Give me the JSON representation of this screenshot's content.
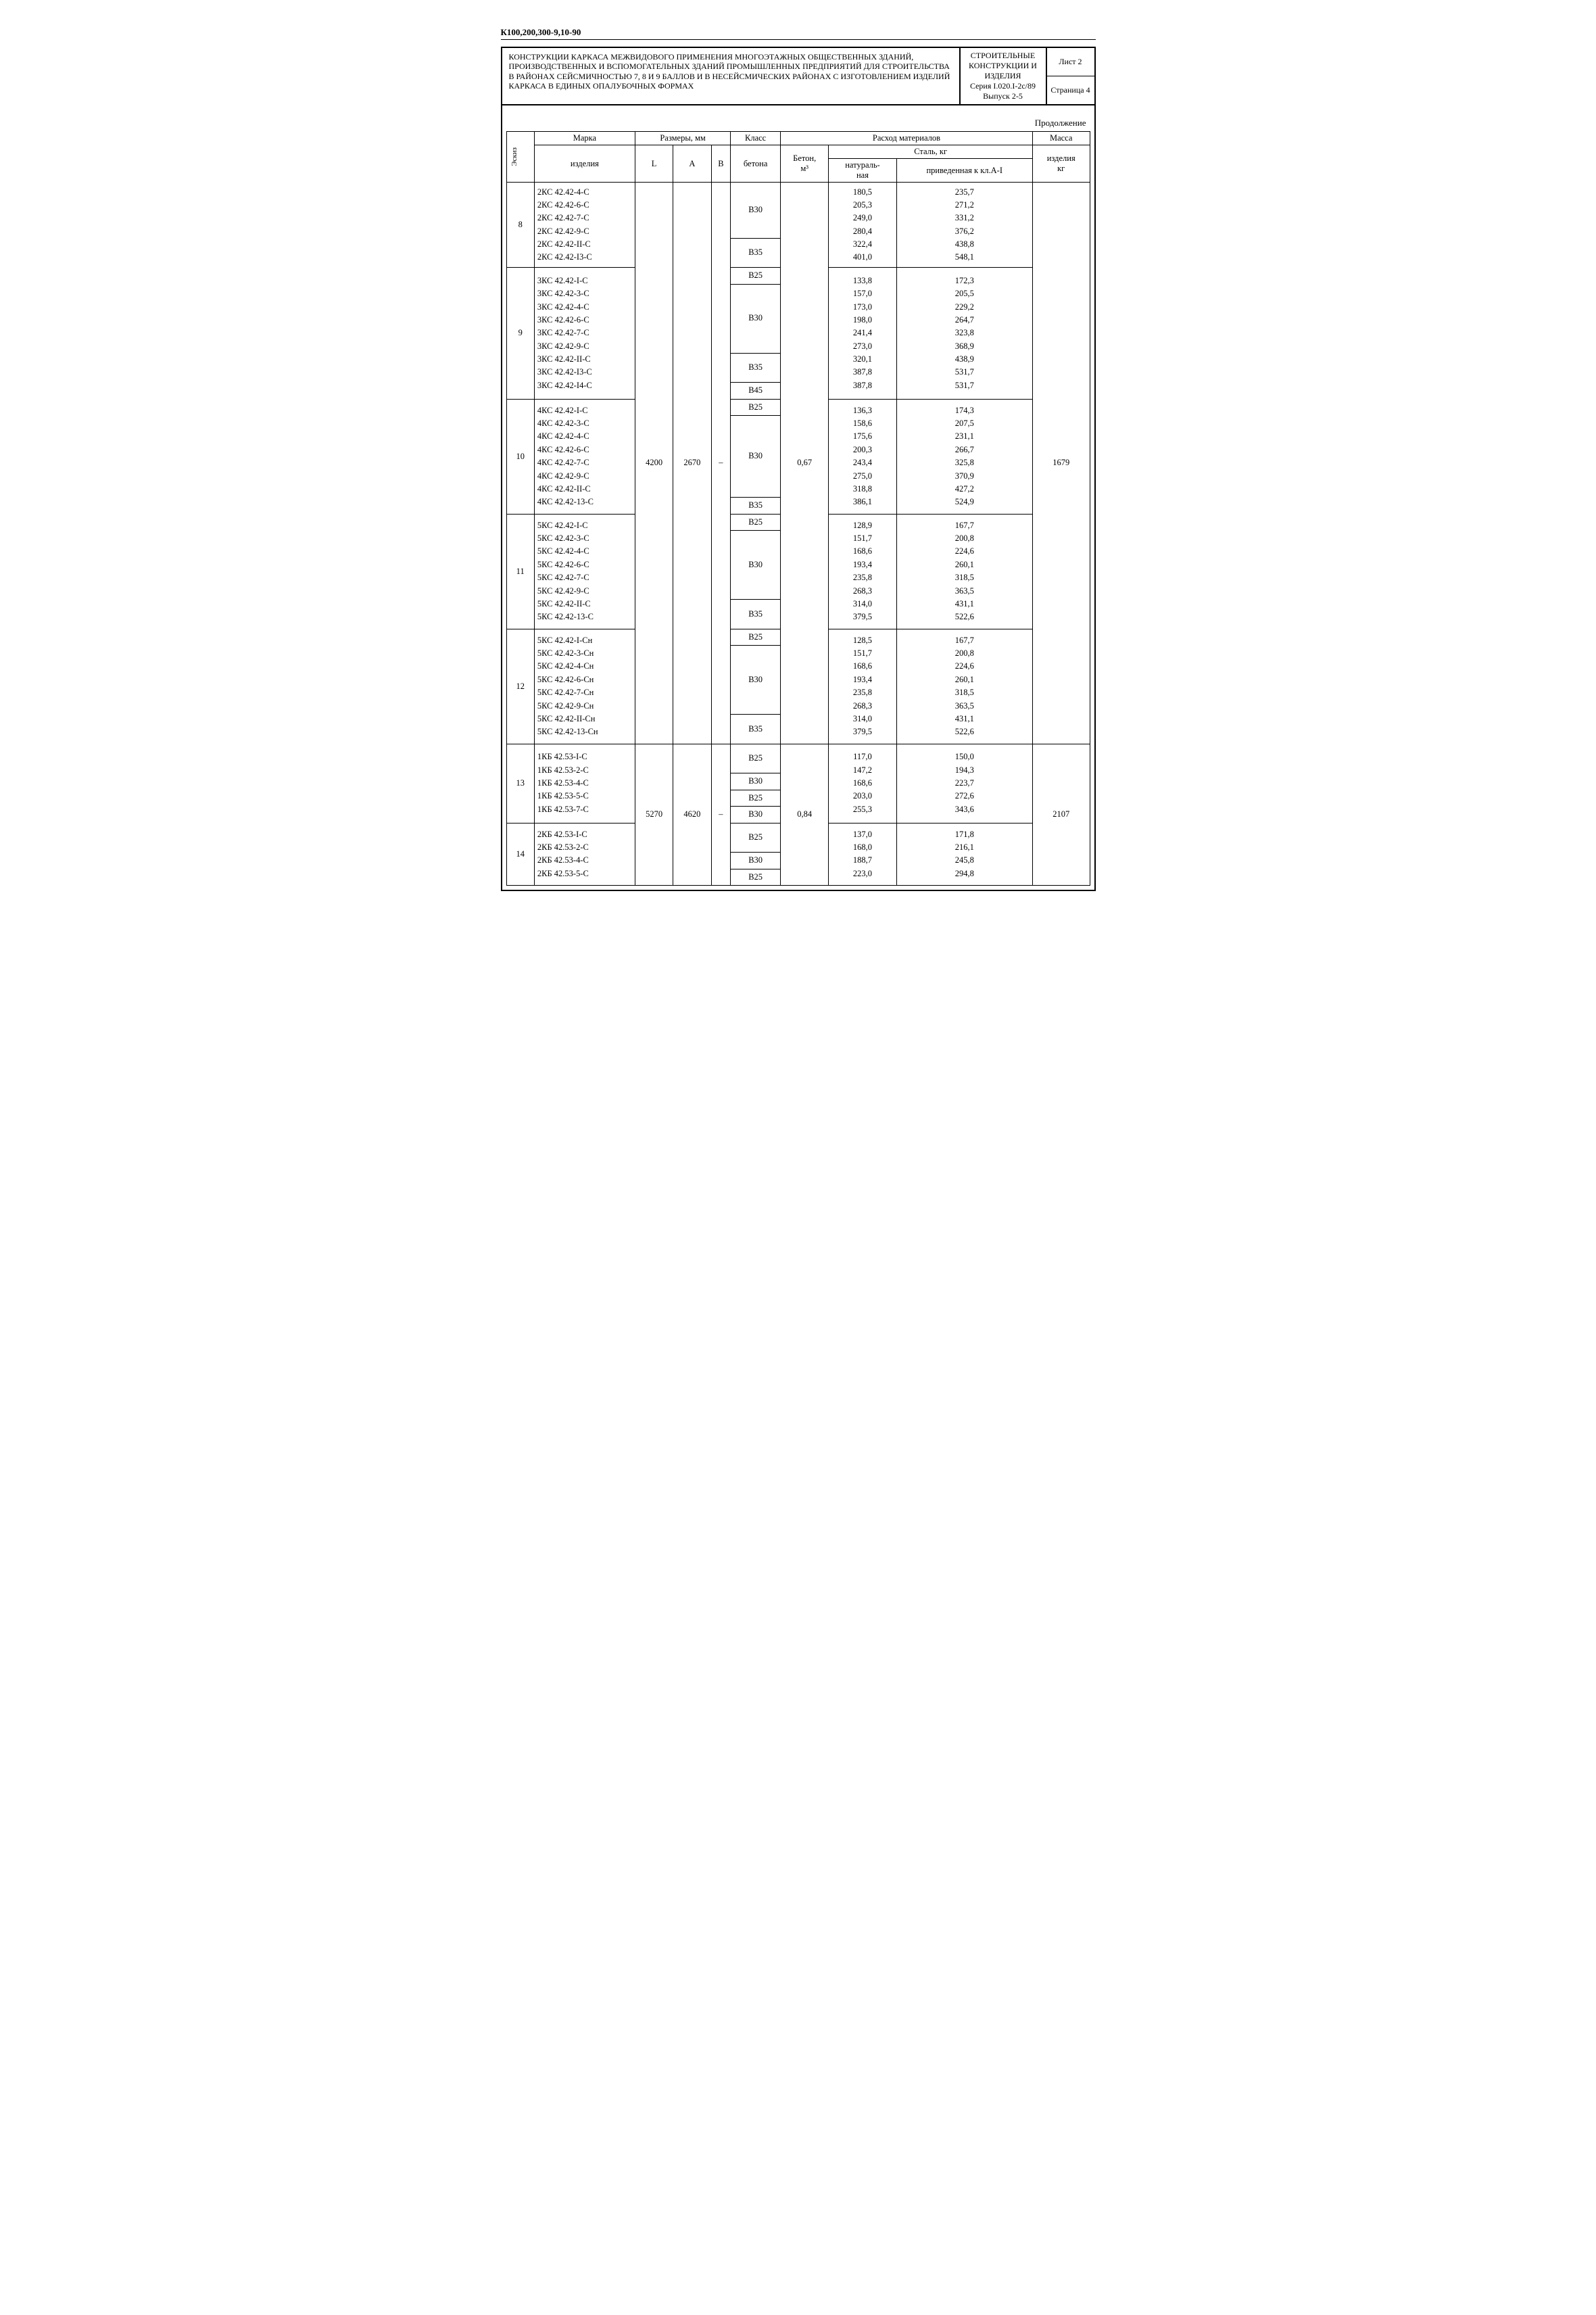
{
  "doc_code": "К100,200,300-9,10-90",
  "header": {
    "description": "КОНСТРУКЦИИ КАРКАСА МЕЖВИДОВОГО ПРИМЕНЕНИЯ МНОГОЭТАЖНЫХ ОБЩЕСТВЕННЫХ ЗДАНИЙ, ПРОИЗВОДСТВЕННЫХ И ВСПОМОГАТЕЛЬНЫХ ЗДАНИЙ ПРОМЫШЛЕННЫХ ПРЕДПРИЯТИЙ ДЛЯ СТРОИТЕЛЬСТВА В РАЙОНАХ СЕЙСМИЧНОСТЬЮ 7, 8 и 9 БАЛЛОВ И В НЕСЕЙСМИЧЕСКИХ РАЙОНАХ С ИЗГОТОВЛЕНИЕМ ИЗДЕЛИЙ КАРКАСА В ЕДИНЫХ ОПАЛУБОЧНЫХ ФОРМАХ",
    "box2_l1": "СТРОИТЕЛЬНЫЕ",
    "box2_l2": "КОНСТРУКЦИИ И",
    "box2_l3": "ИЗДЕЛИЯ",
    "box2_l4": "Серия I.020.I-2с/89",
    "box2_l5": "Выпуск 2-5",
    "sheet_label": "Лист 2",
    "page_label": "Страница 4"
  },
  "continuation": "Продолжение",
  "col_headers": {
    "eskiz": "Эскиз",
    "mark": "Марка",
    "mark_sub": "изделия",
    "dims": "Размеры, мм",
    "L": "L",
    "A": "A",
    "B": "B",
    "klass": "Класс",
    "klass_sub": "бетона",
    "consum": "Расход материалов",
    "beton": "Бетон,",
    "beton_unit": "м³",
    "steel": "Сталь, кг",
    "steel_nat": "натураль-\nная",
    "steel_priv": "приведенная к кл.А-I",
    "mass": "Масса",
    "mass_sub": "изделия",
    "mass_unit": "кг"
  },
  "shared": {
    "L1": "4200",
    "A1": "2670",
    "B1": "–",
    "beton1": "0,67",
    "mass1": "1679",
    "L2": "5270",
    "A2": "4620",
    "B2": "–",
    "beton2": "0,84",
    "mass2": "2107"
  },
  "group8": {
    "eskiz": "8",
    "marks": [
      "2КС 42.42-4-С",
      "2КС 42.42-6-С",
      "2КС 42.42-7-С",
      "2КС 42.42-9-С",
      "2КС 42.42-II-С",
      "2КС 42.42-I3-С"
    ],
    "klass_cells": [
      {
        "span": 4,
        "val": "В30"
      },
      {
        "span": 2,
        "val": "В35"
      }
    ],
    "nat": [
      "180,5",
      "205,3",
      "249,0",
      "280,4",
      "322,4",
      "401,0"
    ],
    "priv": [
      "235,7",
      "271,2",
      "331,2",
      "376,2",
      "438,8",
      "548,1"
    ]
  },
  "group9": {
    "eskiz": "9",
    "marks": [
      "3КС 42.42-I-С",
      "3КС 42.42-3-С",
      "3КС 42.42-4-С",
      "3КС 42.42-6-С",
      "3КС 42.42-7-С",
      "3КС 42.42-9-С",
      "3КС 42.42-II-С",
      "3КС 42.42-I3-С",
      "3КС 42.42-I4-С"
    ],
    "klass_cells": [
      {
        "span": 1,
        "val": "В25"
      },
      {
        "span": 5,
        "val": "В30"
      },
      {
        "span": 2,
        "val": "В35"
      },
      {
        "span": 1,
        "val": "В45"
      }
    ],
    "nat": [
      "133,8",
      "157,0",
      "173,0",
      "198,0",
      "241,4",
      "273,0",
      "320,1",
      "387,8",
      "387,8"
    ],
    "priv": [
      "172,3",
      "205,5",
      "229,2",
      "264,7",
      "323,8",
      "368,9",
      "438,9",
      "531,7",
      "531,7"
    ]
  },
  "group10": {
    "eskiz": "10",
    "marks": [
      "4КС 42.42-I-С",
      "4КС 42.42-3-С",
      "4КС 42.42-4-С",
      "4КС 42.42-6-С",
      "4КС 42.42-7-С",
      "4КС 42.42-9-С",
      "4КС 42.42-II-С",
      "4КС 42.42-13-С"
    ],
    "klass_cells": [
      {
        "span": 1,
        "val": "В25"
      },
      {
        "span": 6,
        "val": "В30"
      },
      {
        "span": 1,
        "val": "В35"
      }
    ],
    "nat": [
      "136,3",
      "158,6",
      "175,6",
      "200,3",
      "243,4",
      "275,0",
      "318,8",
      "386,1"
    ],
    "priv": [
      "174,3",
      "207,5",
      "231,1",
      "266,7",
      "325,8",
      "370,9",
      "427,2",
      "524,9"
    ]
  },
  "group11": {
    "eskiz": "11",
    "marks": [
      "5КС 42.42-I-С",
      "5КС 42.42-3-С",
      "5КС 42.42-4-С",
      "5КС 42.42-6-С",
      "5КС 42.42-7-С",
      "5КС 42.42-9-С",
      "5КС 42.42-II-С",
      "5КС 42.42-13-С"
    ],
    "klass_cells": [
      {
        "span": 1,
        "val": "В25"
      },
      {
        "span": 5,
        "val": "В30"
      },
      {
        "span": 2,
        "val": "В35"
      }
    ],
    "nat": [
      "128,9",
      "151,7",
      "168,6",
      "193,4",
      "235,8",
      "268,3",
      "314,0",
      "379,5"
    ],
    "priv": [
      "167,7",
      "200,8",
      "224,6",
      "260,1",
      "318,5",
      "363,5",
      "431,1",
      "522,6"
    ]
  },
  "group12": {
    "eskiz": "12",
    "marks": [
      "5КС 42.42-I-Сн",
      "5КС 42.42-3-Сн",
      "5КС 42.42-4-Сн",
      "5КС 42.42-6-Сн",
      "5КС 42.42-7-Сн",
      "5КС 42.42-9-Сн",
      "5КС 42.42-II-Сн",
      "5КС 42.42-13-Сн"
    ],
    "klass_cells": [
      {
        "span": 1,
        "val": "В25"
      },
      {
        "span": 5,
        "val": "В30"
      },
      {
        "span": 2,
        "val": "В35"
      }
    ],
    "nat": [
      "128,5",
      "151,7",
      "168,6",
      "193,4",
      "235,8",
      "268,3",
      "314,0",
      "379,5"
    ],
    "priv": [
      "167,7",
      "200,8",
      "224,6",
      "260,1",
      "318,5",
      "363,5",
      "431,1",
      "522,6"
    ]
  },
  "group13": {
    "eskiz": "13",
    "marks": [
      "1КБ 42.53-I-С",
      "1КБ 42.53-2-С",
      "1КБ 42.53-4-С",
      "1КБ 42.53-5-С",
      "1КБ 42.53-7-С"
    ],
    "klass_cells": [
      {
        "span": 2,
        "val": "В25"
      },
      {
        "span": 1,
        "val": "В30"
      },
      {
        "span": 1,
        "val": "В25"
      },
      {
        "span": 1,
        "val": "В30"
      }
    ],
    "nat": [
      "117,0",
      "147,2",
      "168,6",
      "203,0",
      "255,3"
    ],
    "priv": [
      "150,0",
      "194,3",
      "223,7",
      "272,6",
      "343,6"
    ]
  },
  "group14": {
    "eskiz": "14",
    "marks": [
      "2КБ 42.53-I-С",
      "2КБ 42.53-2-С",
      "2КБ 42.53-4-С",
      "2КБ 42.53-5-С"
    ],
    "klass_cells": [
      {
        "span": 2,
        "val": "В25"
      },
      {
        "span": 1,
        "val": "В30"
      },
      {
        "span": 1,
        "val": "В25"
      }
    ],
    "nat": [
      "137,0",
      "168,0",
      "188,7",
      "223,0"
    ],
    "priv": [
      "171,8",
      "216,1",
      "245,8",
      "294,8"
    ]
  }
}
